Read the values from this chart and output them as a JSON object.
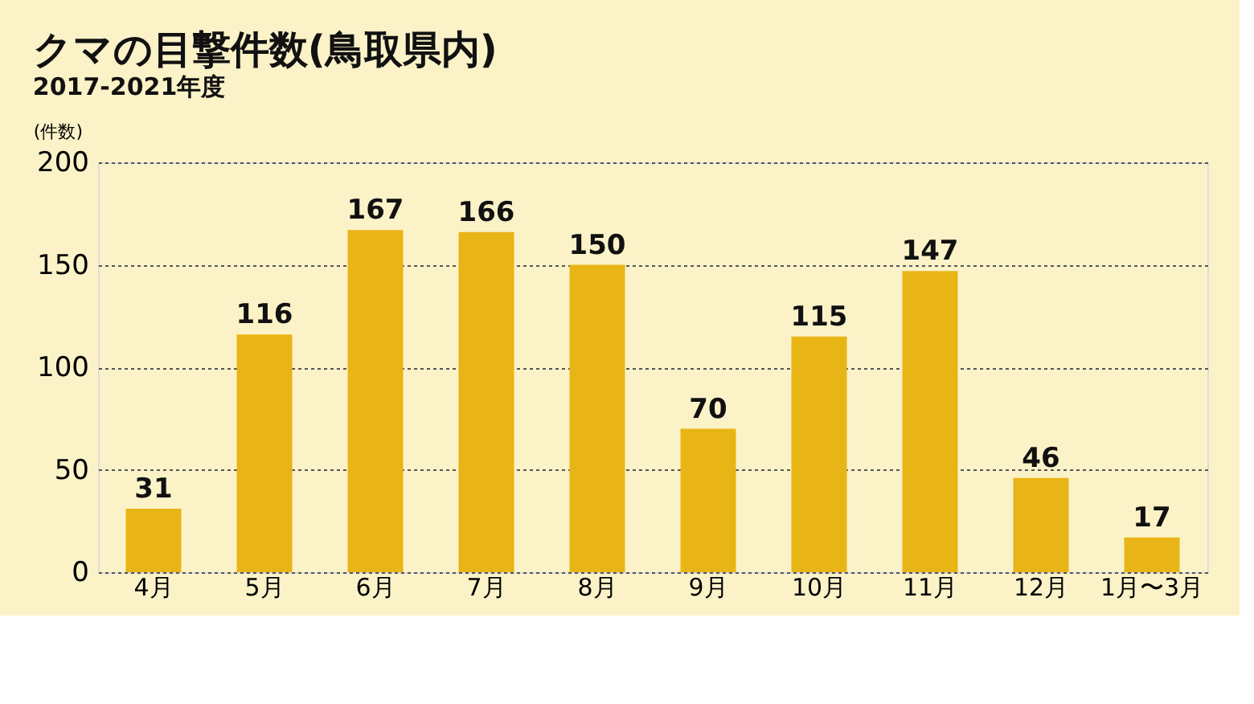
{
  "chart_data": {
    "type": "bar",
    "title": "クマの目撃件数(鳥取県内)",
    "subtitle": "2017-2021年度",
    "ylabel": "(件数)",
    "categories": [
      "4月",
      "5月",
      "6月",
      "7月",
      "8月",
      "9月",
      "10月",
      "11月",
      "12月",
      "1月〜3月"
    ],
    "values": [
      31,
      116,
      167,
      166,
      150,
      70,
      115,
      147,
      46,
      17
    ],
    "color": "#e9b416",
    "ylim": [
      0,
      200
    ],
    "yticks": [
      0,
      50,
      100,
      150,
      200
    ],
    "grid": "y",
    "data_labels": true
  }
}
